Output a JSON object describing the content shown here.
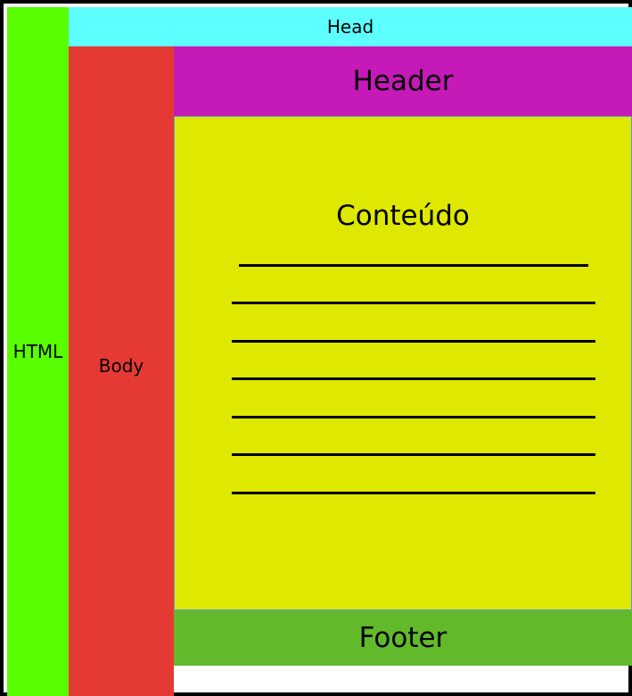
{
  "labels": {
    "html": "HTML",
    "head": "Head",
    "body": "Body",
    "header": "Header",
    "content": "Conteúdo",
    "footer": "Footer"
  },
  "colors": {
    "html": "#59ff00",
    "head": "#5effff",
    "body": "#e53a33",
    "header": "#c519b8",
    "content": "#dfe800",
    "footer": "#62ba2a"
  }
}
